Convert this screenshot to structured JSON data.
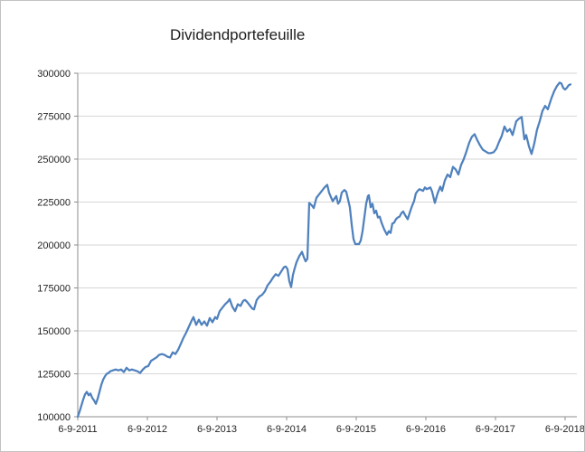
{
  "chart_title": "Dividendportefeuille",
  "style": {
    "series_color": "#4f81bd",
    "gridline_color": "#d6d6d6",
    "axis_color": "#8e8e8e",
    "label_color": "#242424",
    "background": "#ffffff",
    "border_color": "#c2c2c2"
  },
  "chart_data": {
    "type": "line",
    "title": "Dividendportefeuille",
    "xlabel": "",
    "ylabel": "",
    "legend": "none",
    "grid": "horizontal",
    "x_unit": "years since first tick (6-9-2011), weekly samples",
    "x_tick_labels": [
      "6-9-2011",
      "6-9-2012",
      "6-9-2013",
      "6-9-2014",
      "6-9-2015",
      "6-9-2016",
      "6-9-2017",
      "6-9-2018"
    ],
    "x_tick_positions": [
      0,
      1,
      2,
      3,
      4,
      5,
      6,
      7
    ],
    "x_range": [
      0,
      7.17
    ],
    "y_range": [
      100000,
      300000
    ],
    "y_tick_step": 25000,
    "y_tick_labels": [
      "100000",
      "125000",
      "150000",
      "175000",
      "200000",
      "225000",
      "250000",
      "275000",
      "300000"
    ],
    "series": [
      {
        "name": "Dividendportefeuille",
        "color": "#4f81bd",
        "points": [
          [
            0.0,
            100000
          ],
          [
            0.026,
            103000
          ],
          [
            0.052,
            106500
          ],
          [
            0.078,
            110000
          ],
          [
            0.104,
            113000
          ],
          [
            0.13,
            114500
          ],
          [
            0.156,
            112500
          ],
          [
            0.182,
            113500
          ],
          [
            0.208,
            111000
          ],
          [
            0.234,
            109500
          ],
          [
            0.26,
            107500
          ],
          [
            0.286,
            110500
          ],
          [
            0.312,
            114500
          ],
          [
            0.338,
            118500
          ],
          [
            0.364,
            121500
          ],
          [
            0.39,
            123500
          ],
          [
            0.416,
            125000
          ],
          [
            0.442,
            125500
          ],
          [
            0.468,
            126500
          ],
          [
            0.506,
            127000
          ],
          [
            0.545,
            127500
          ],
          [
            0.584,
            127000
          ],
          [
            0.623,
            127500
          ],
          [
            0.662,
            126000
          ],
          [
            0.701,
            128500
          ],
          [
            0.74,
            127000
          ],
          [
            0.779,
            127500
          ],
          [
            0.818,
            127000
          ],
          [
            0.857,
            126500
          ],
          [
            0.896,
            125500
          ],
          [
            0.935,
            127500
          ],
          [
            0.974,
            129000
          ],
          [
            1.013,
            129500
          ],
          [
            1.052,
            132500
          ],
          [
            1.091,
            133500
          ],
          [
            1.13,
            134500
          ],
          [
            1.169,
            136000
          ],
          [
            1.208,
            136500
          ],
          [
            1.247,
            136000
          ],
          [
            1.286,
            135000
          ],
          [
            1.325,
            134500
          ],
          [
            1.364,
            137500
          ],
          [
            1.403,
            136500
          ],
          [
            1.442,
            139000
          ],
          [
            1.481,
            142500
          ],
          [
            1.519,
            146000
          ],
          [
            1.558,
            149000
          ],
          [
            1.597,
            152500
          ],
          [
            1.636,
            156000
          ],
          [
            1.662,
            158000
          ],
          [
            1.701,
            153500
          ],
          [
            1.74,
            156500
          ],
          [
            1.779,
            153500
          ],
          [
            1.818,
            155500
          ],
          [
            1.857,
            153000
          ],
          [
            1.896,
            157500
          ],
          [
            1.935,
            155000
          ],
          [
            1.974,
            158000
          ],
          [
            2.0,
            157000
          ],
          [
            2.039,
            161500
          ],
          [
            2.078,
            163500
          ],
          [
            2.117,
            165500
          ],
          [
            2.156,
            167000
          ],
          [
            2.182,
            168500
          ],
          [
            2.221,
            164000
          ],
          [
            2.26,
            161500
          ],
          [
            2.299,
            165500
          ],
          [
            2.338,
            164500
          ],
          [
            2.377,
            167500
          ],
          [
            2.403,
            168000
          ],
          [
            2.429,
            167000
          ],
          [
            2.468,
            165000
          ],
          [
            2.506,
            163000
          ],
          [
            2.532,
            162500
          ],
          [
            2.571,
            168000
          ],
          [
            2.61,
            170000
          ],
          [
            2.649,
            171000
          ],
          [
            2.688,
            173000
          ],
          [
            2.727,
            176500
          ],
          [
            2.766,
            178500
          ],
          [
            2.805,
            181000
          ],
          [
            2.844,
            183000
          ],
          [
            2.883,
            182000
          ],
          [
            2.922,
            184500
          ],
          [
            2.961,
            187000
          ],
          [
            2.987,
            187500
          ],
          [
            3.013,
            186000
          ],
          [
            3.039,
            179000
          ],
          [
            3.065,
            175500
          ],
          [
            3.091,
            182500
          ],
          [
            3.117,
            186500
          ],
          [
            3.143,
            190000
          ],
          [
            3.182,
            193500
          ],
          [
            3.221,
            196000
          ],
          [
            3.247,
            193000
          ],
          [
            3.273,
            190500
          ],
          [
            3.299,
            192000
          ],
          [
            3.325,
            224500
          ],
          [
            3.364,
            223000
          ],
          [
            3.39,
            221500
          ],
          [
            3.429,
            227500
          ],
          [
            3.468,
            229500
          ],
          [
            3.506,
            231500
          ],
          [
            3.545,
            233500
          ],
          [
            3.584,
            235000
          ],
          [
            3.61,
            230500
          ],
          [
            3.636,
            228000
          ],
          [
            3.662,
            225500
          ],
          [
            3.688,
            227000
          ],
          [
            3.714,
            228500
          ],
          [
            3.74,
            224000
          ],
          [
            3.766,
            225500
          ],
          [
            3.792,
            230500
          ],
          [
            3.831,
            232000
          ],
          [
            3.857,
            231000
          ],
          [
            3.883,
            226500
          ],
          [
            3.909,
            222000
          ],
          [
            3.935,
            212000
          ],
          [
            3.961,
            203500
          ],
          [
            3.987,
            200500
          ],
          [
            4.013,
            200500
          ],
          [
            4.039,
            200500
          ],
          [
            4.065,
            202500
          ],
          [
            4.091,
            208000
          ],
          [
            4.117,
            216000
          ],
          [
            4.143,
            224000
          ],
          [
            4.169,
            228500
          ],
          [
            4.182,
            229000
          ],
          [
            4.208,
            222000
          ],
          [
            4.234,
            224000
          ],
          [
            4.26,
            218500
          ],
          [
            4.286,
            220000
          ],
          [
            4.312,
            216000
          ],
          [
            4.338,
            216500
          ],
          [
            4.364,
            213000
          ],
          [
            4.403,
            209000
          ],
          [
            4.442,
            206000
          ],
          [
            4.468,
            208000
          ],
          [
            4.494,
            207000
          ],
          [
            4.519,
            212500
          ],
          [
            4.545,
            213000
          ],
          [
            4.571,
            215000
          ],
          [
            4.597,
            216000
          ],
          [
            4.623,
            216500
          ],
          [
            4.649,
            218500
          ],
          [
            4.675,
            219500
          ],
          [
            4.701,
            217500
          ],
          [
            4.74,
            215000
          ],
          [
            4.779,
            220000
          ],
          [
            4.805,
            223000
          ],
          [
            4.831,
            225500
          ],
          [
            4.857,
            230000
          ],
          [
            4.883,
            231500
          ],
          [
            4.909,
            232500
          ],
          [
            4.935,
            232000
          ],
          [
            4.961,
            231500
          ],
          [
            4.987,
            233500
          ],
          [
            5.013,
            232500
          ],
          [
            5.039,
            233000
          ],
          [
            5.065,
            233500
          ],
          [
            5.091,
            231000
          ],
          [
            5.13,
            224500
          ],
          [
            5.169,
            230000
          ],
          [
            5.208,
            234000
          ],
          [
            5.234,
            231500
          ],
          [
            5.273,
            237500
          ],
          [
            5.312,
            241000
          ],
          [
            5.351,
            239500
          ],
          [
            5.39,
            245500
          ],
          [
            5.429,
            244000
          ],
          [
            5.468,
            241000
          ],
          [
            5.506,
            246500
          ],
          [
            5.545,
            250000
          ],
          [
            5.584,
            254500
          ],
          [
            5.623,
            259500
          ],
          [
            5.662,
            263000
          ],
          [
            5.701,
            264500
          ],
          [
            5.74,
            261000
          ],
          [
            5.779,
            258000
          ],
          [
            5.818,
            255500
          ],
          [
            5.857,
            254500
          ],
          [
            5.896,
            253500
          ],
          [
            5.935,
            253500
          ],
          [
            5.974,
            254000
          ],
          [
            6.013,
            256000
          ],
          [
            6.052,
            260000
          ],
          [
            6.091,
            263500
          ],
          [
            6.13,
            269000
          ],
          [
            6.169,
            266000
          ],
          [
            6.208,
            267500
          ],
          [
            6.247,
            264000
          ],
          [
            6.299,
            272000
          ],
          [
            6.338,
            273500
          ],
          [
            6.377,
            274500
          ],
          [
            6.416,
            261500
          ],
          [
            6.442,
            264000
          ],
          [
            6.481,
            257500
          ],
          [
            6.519,
            253000
          ],
          [
            6.558,
            259000
          ],
          [
            6.597,
            267000
          ],
          [
            6.636,
            272000
          ],
          [
            6.675,
            278000
          ],
          [
            6.714,
            281000
          ],
          [
            6.753,
            279000
          ],
          [
            6.805,
            285500
          ],
          [
            6.844,
            289500
          ],
          [
            6.883,
            292500
          ],
          [
            6.922,
            294500
          ],
          [
            6.948,
            294000
          ],
          [
            6.974,
            291500
          ],
          [
            7.0,
            290500
          ],
          [
            7.026,
            291500
          ],
          [
            7.052,
            293000
          ],
          [
            7.078,
            293500
          ]
        ]
      }
    ]
  }
}
